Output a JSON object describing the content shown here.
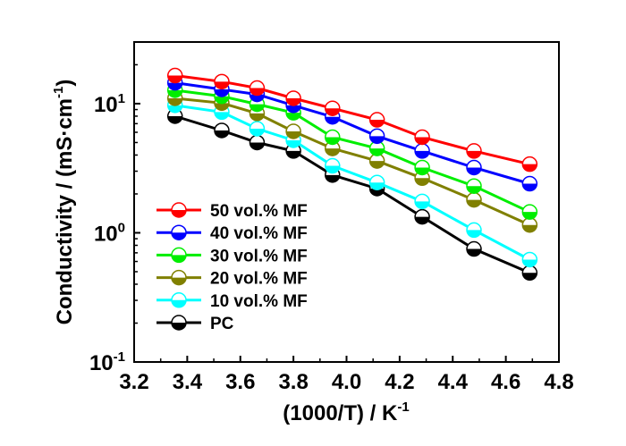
{
  "chart_data": {
    "type": "line",
    "xlabel": "(1000/T) / K",
    "xlabel_sup": "-1",
    "ylabel": "Conductivity / (mS·cm",
    "ylabel_sup": "-1",
    "ylabel_close": ")",
    "xlim": [
      3.2,
      4.8
    ],
    "ylim": [
      0.1,
      30
    ],
    "yscale": "log",
    "x_ticks": [
      "3.2",
      "3.4",
      "3.6",
      "3.8",
      "4.0",
      "4.2",
      "4.4",
      "4.6",
      "4.8"
    ],
    "y_ticks": [
      {
        "base": "10",
        "exp": "-1",
        "value": 0.1
      },
      {
        "base": "10",
        "exp": "0",
        "value": 1
      },
      {
        "base": "10",
        "exp": "1",
        "value": 10
      }
    ],
    "legend_position": "bottom-left",
    "x": [
      3.354,
      3.53,
      3.663,
      3.8,
      3.947,
      4.115,
      4.285,
      4.48,
      4.69
    ],
    "series": [
      {
        "name": "50 vol.% MF",
        "color": "#ff0000",
        "values": [
          16.5,
          14.8,
          13.2,
          11.0,
          9.2,
          7.5,
          5.5,
          4.3,
          3.4
        ]
      },
      {
        "name": "40 vol.% MF",
        "color": "#0000ff",
        "values": [
          14.5,
          12.9,
          11.8,
          9.7,
          7.9,
          5.6,
          4.3,
          3.2,
          2.4
        ]
      },
      {
        "name": "30 vol.% MF",
        "color": "#00ee00",
        "values": [
          12.7,
          11.4,
          9.9,
          8.5,
          5.5,
          4.5,
          3.2,
          2.3,
          1.45
        ]
      },
      {
        "name": "20 vol.% MF",
        "color": "#808000",
        "values": [
          11.0,
          10.1,
          8.4,
          6.1,
          4.5,
          3.6,
          2.65,
          1.8,
          1.15
        ]
      },
      {
        "name": "10 vol.% MF",
        "color": "#00ffff",
        "values": [
          9.7,
          8.6,
          6.4,
          5.2,
          3.3,
          2.45,
          1.75,
          1.05,
          0.62
        ]
      },
      {
        "name": "PC",
        "color": "#000000",
        "values": [
          8.0,
          6.2,
          5.0,
          4.3,
          2.8,
          2.2,
          1.33,
          0.75,
          0.49
        ]
      }
    ]
  }
}
